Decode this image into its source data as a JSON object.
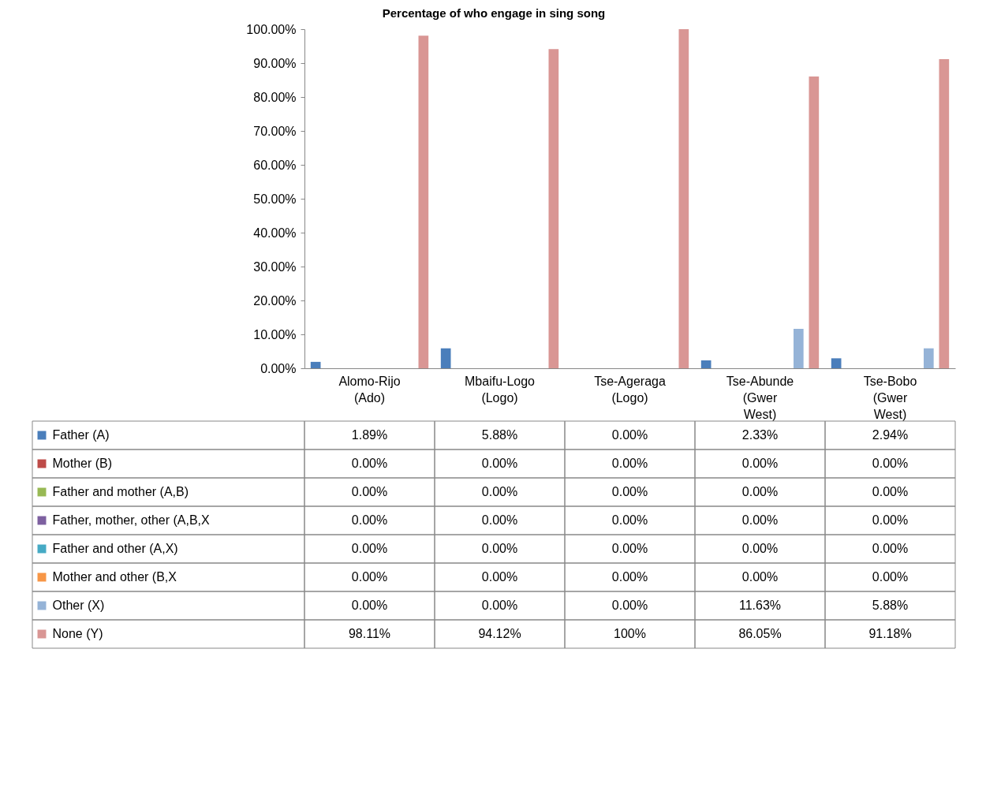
{
  "chart_data": {
    "type": "bar",
    "title": "Percentage of who engage in sing song",
    "categories": [
      "Alomo-Rijo (Ado)",
      "Mbaifu-Logo (Logo)",
      "Tse-Ageraga (Logo)",
      "Tse-Abunde (Gwer West)",
      "Tse-Bobo (Gwer West)"
    ],
    "series": [
      {
        "name": "Father (A)",
        "color": "#4a7ebb",
        "values": [
          1.89,
          5.88,
          0,
          2.33,
          2.94
        ],
        "value_labels": [
          "1.89%",
          "5.88%",
          "0.00%",
          "2.33%",
          "2.94%"
        ]
      },
      {
        "name": "Mother (B)",
        "color": "#be4b48",
        "values": [
          0,
          0,
          0,
          0,
          0
        ],
        "value_labels": [
          "0.00%",
          "0.00%",
          "0.00%",
          "0.00%",
          "0.00%"
        ]
      },
      {
        "name": "Father and mother (A,B)",
        "color": "#98b954",
        "values": [
          0,
          0,
          0,
          0,
          0
        ],
        "value_labels": [
          "0.00%",
          "0.00%",
          "0.00%",
          "0.00%",
          "0.00%"
        ]
      },
      {
        "name": "Father, mother, other (A,B,X",
        "color": "#7d60a0",
        "values": [
          0,
          0,
          0,
          0,
          0
        ],
        "value_labels": [
          "0.00%",
          "0.00%",
          "0.00%",
          "0.00%",
          "0.00%"
        ]
      },
      {
        "name": "Father and other (A,X)",
        "color": "#46aac5",
        "values": [
          0,
          0,
          0,
          0,
          0
        ],
        "value_labels": [
          "0.00%",
          "0.00%",
          "0.00%",
          "0.00%",
          "0.00%"
        ]
      },
      {
        "name": "Mother and other (B,X",
        "color": "#f79646",
        "values": [
          0,
          0,
          0,
          0,
          0
        ],
        "value_labels": [
          "0.00%",
          "0.00%",
          "0.00%",
          "0.00%",
          "0.00%"
        ]
      },
      {
        "name": "Other (X)",
        "color": "#95b3d7",
        "values": [
          0,
          0,
          0,
          11.63,
          5.88
        ],
        "value_labels": [
          "0.00%",
          "0.00%",
          "0.00%",
          "11.63%",
          "5.88%"
        ]
      },
      {
        "name": "None (Y)",
        "color": "#d99694",
        "values": [
          98.11,
          94.12,
          100,
          86.05,
          91.18
        ],
        "value_labels": [
          "98.11%",
          "94.12%",
          "100%",
          "86.05%",
          "91.18%"
        ]
      }
    ],
    "ylim": [
      0,
      100
    ],
    "yticks": [
      {
        "value": 0,
        "label": "0.00%"
      },
      {
        "value": 10,
        "label": "10.00%"
      },
      {
        "value": 20,
        "label": "20.00%"
      },
      {
        "value": 30,
        "label": "30.00%"
      },
      {
        "value": 40,
        "label": "40.00%"
      },
      {
        "value": 50,
        "label": "50.00%"
      },
      {
        "value": 60,
        "label": "60.00%"
      },
      {
        "value": 70,
        "label": "70.00%"
      },
      {
        "value": 80,
        "label": "80.00%"
      },
      {
        "value": 90,
        "label": "90.00%"
      },
      {
        "value": 100,
        "label": "100.00%"
      }
    ],
    "grid": false,
    "legend": "bottom"
  }
}
